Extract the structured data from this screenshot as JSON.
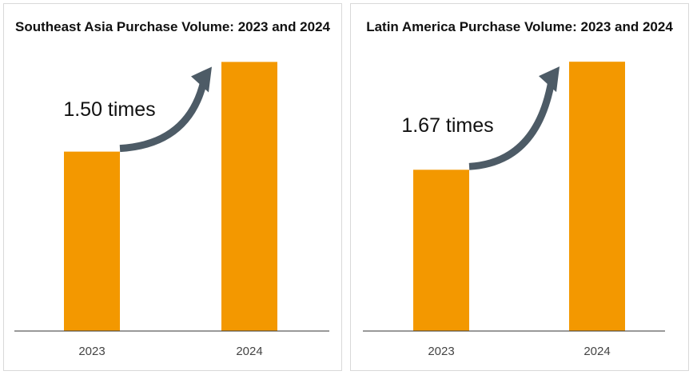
{
  "chart_data": [
    {
      "type": "bar",
      "title": "Southeast Asia Purchase Volume: 2023 and 2024",
      "categories": [
        "2023",
        "2024"
      ],
      "values": [
        1.0,
        1.5
      ],
      "annotation": "1.50 times",
      "ylim": [
        0,
        1.6
      ],
      "grid": false,
      "bar_color": "#f39800",
      "arrow_color": "#4d5b66"
    },
    {
      "type": "bar",
      "title": "Latin America Purchase Volume: 2023 and 2024",
      "categories": [
        "2023",
        "2024"
      ],
      "values": [
        1.0,
        1.67
      ],
      "annotation": "1.67 times",
      "ylim": [
        0,
        1.78
      ],
      "grid": false,
      "bar_color": "#f39800",
      "arrow_color": "#4d5b66"
    }
  ]
}
